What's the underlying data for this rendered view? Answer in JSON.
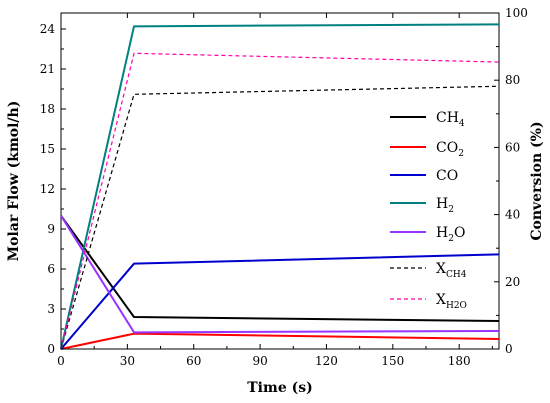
{
  "chart_data": {
    "type": "line",
    "xlabel": "Time (s)",
    "ylabel": "Molar Flow (kmol/h)",
    "y2label": "Conversion (%)",
    "xlim": [
      0,
      198
    ],
    "ylim": [
      0,
      25.2
    ],
    "y2lim": [
      0,
      100
    ],
    "xticks": [
      0,
      30,
      60,
      90,
      120,
      150,
      180
    ],
    "yticks": [
      0,
      3,
      6,
      9,
      12,
      15,
      18,
      21,
      24
    ],
    "y2ticks": [
      0,
      20,
      40,
      60,
      80,
      100
    ],
    "legend_position": "right",
    "series": [
      {
        "name": "CH",
        "sub": "4",
        "axis": "left",
        "color": "#000000",
        "dash": "solid",
        "x": [
          0,
          33,
          198
        ],
        "y": [
          10.0,
          2.4,
          2.1
        ]
      },
      {
        "name": "CO",
        "sub": "2",
        "axis": "left",
        "color": "#ff0000",
        "dash": "solid",
        "x": [
          0,
          33,
          198
        ],
        "y": [
          0,
          1.15,
          0.75
        ]
      },
      {
        "name": "CO",
        "sub": "",
        "axis": "left",
        "color": "#0000cc",
        "dash": "solid",
        "x": [
          0,
          33,
          198
        ],
        "y": [
          0,
          6.4,
          7.1
        ]
      },
      {
        "name": "H",
        "sub": "2",
        "axis": "left",
        "color": "#008080",
        "dash": "solid",
        "x": [
          0,
          33,
          198
        ],
        "y": [
          0,
          24.2,
          24.35
        ]
      },
      {
        "name": "H",
        "sub": "2",
        "suffix": "O",
        "axis": "left",
        "color": "#9933ff",
        "dash": "solid",
        "x": [
          0,
          33,
          198
        ],
        "y": [
          10.0,
          1.25,
          1.35
        ]
      },
      {
        "name": "X",
        "sub": "CH4",
        "axis": "right",
        "color": "#000000",
        "dash": "dashed",
        "x": [
          0,
          33,
          198
        ],
        "y": [
          0,
          75.8,
          78.2
        ]
      },
      {
        "name": "X",
        "sub": "H2O",
        "axis": "right",
        "color": "#ff00aa",
        "dash": "dashed",
        "x": [
          0,
          33,
          198
        ],
        "y": [
          0,
          88.0,
          85.4
        ]
      }
    ]
  }
}
